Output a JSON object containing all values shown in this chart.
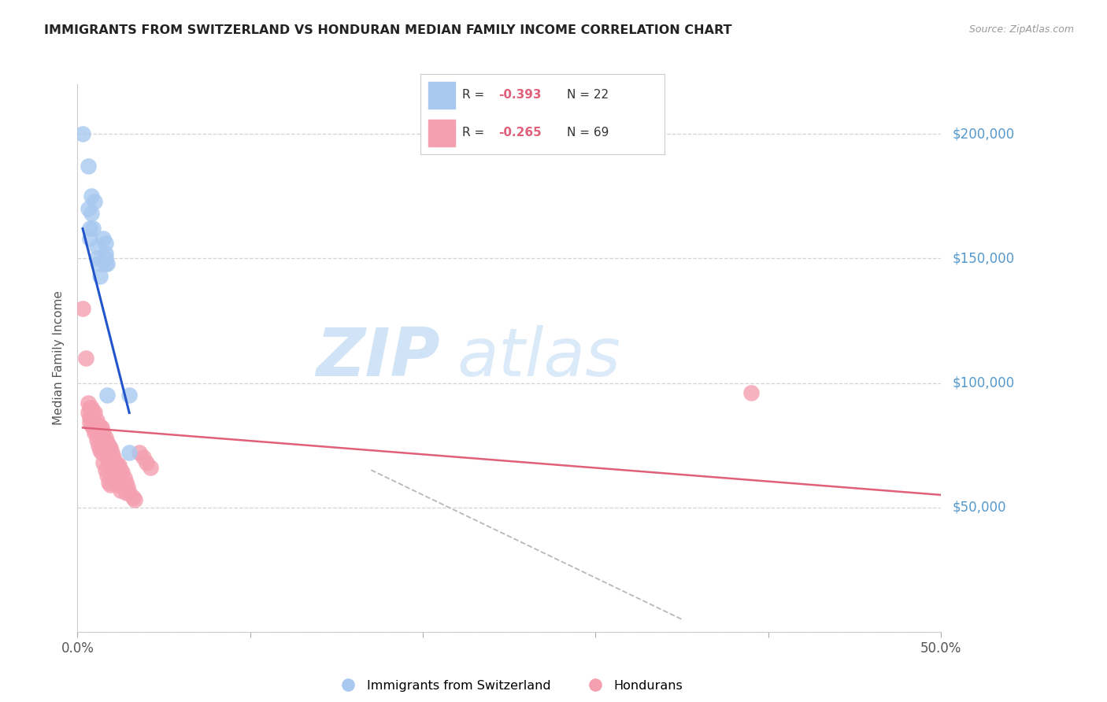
{
  "title": "IMMIGRANTS FROM SWITZERLAND VS HONDURAN MEDIAN FAMILY INCOME CORRELATION CHART",
  "source": "Source: ZipAtlas.com",
  "ylabel": "Median Family Income",
  "legend_label1": "Immigrants from Switzerland",
  "legend_label2": "Hondurans",
  "yticks": [
    0,
    50000,
    100000,
    150000,
    200000
  ],
  "ytick_labels": [
    "",
    "$50,000",
    "$100,000",
    "$150,000",
    "$200,000"
  ],
  "xticks": [
    0.0,
    0.1,
    0.2,
    0.3,
    0.4,
    0.5
  ],
  "xtick_labels": [
    "0.0%",
    "",
    "",
    "",
    "",
    "50.0%"
  ],
  "xlim": [
    0.0,
    0.5
  ],
  "ylim": [
    0,
    220000
  ],
  "background_color": "#ffffff",
  "grid_color": "#d0d0d0",
  "blue_color": "#a8c8f0",
  "pink_color": "#f4a0b0",
  "blue_line_color": "#2255cc",
  "pink_line_color": "#e0607a",
  "dashed_line_color": "#b8b8b8",
  "right_tick_color": "#5599cc",
  "title_color": "#222222",
  "blue_scatter": [
    [
      0.003,
      200000
    ],
    [
      0.006,
      187000
    ],
    [
      0.006,
      170000
    ],
    [
      0.007,
      162000
    ],
    [
      0.007,
      158000
    ],
    [
      0.008,
      175000
    ],
    [
      0.008,
      168000
    ],
    [
      0.009,
      162000
    ],
    [
      0.01,
      173000
    ],
    [
      0.011,
      155000
    ],
    [
      0.011,
      150000
    ],
    [
      0.012,
      148000
    ],
    [
      0.013,
      143000
    ],
    [
      0.015,
      158000
    ],
    [
      0.016,
      156000
    ],
    [
      0.016,
      152000
    ],
    [
      0.016,
      150000
    ],
    [
      0.016,
      148000
    ],
    [
      0.017,
      148000
    ],
    [
      0.017,
      95000
    ],
    [
      0.03,
      95000
    ],
    [
      0.03,
      72000
    ]
  ],
  "pink_scatter": [
    [
      0.003,
      130000
    ],
    [
      0.005,
      110000
    ],
    [
      0.006,
      92000
    ],
    [
      0.006,
      88000
    ],
    [
      0.007,
      90000
    ],
    [
      0.007,
      86000
    ],
    [
      0.007,
      84000
    ],
    [
      0.008,
      90000
    ],
    [
      0.008,
      86000
    ],
    [
      0.008,
      83000
    ],
    [
      0.009,
      88000
    ],
    [
      0.009,
      85000
    ],
    [
      0.009,
      82000
    ],
    [
      0.01,
      88000
    ],
    [
      0.01,
      84000
    ],
    [
      0.01,
      80000
    ],
    [
      0.011,
      85000
    ],
    [
      0.011,
      80000
    ],
    [
      0.011,
      77000
    ],
    [
      0.012,
      83000
    ],
    [
      0.012,
      79000
    ],
    [
      0.012,
      75000
    ],
    [
      0.013,
      82000
    ],
    [
      0.013,
      78000
    ],
    [
      0.013,
      73000
    ],
    [
      0.014,
      82000
    ],
    [
      0.014,
      77000
    ],
    [
      0.014,
      72000
    ],
    [
      0.015,
      80000
    ],
    [
      0.015,
      75000
    ],
    [
      0.015,
      68000
    ],
    [
      0.016,
      78000
    ],
    [
      0.016,
      73000
    ],
    [
      0.016,
      65000
    ],
    [
      0.017,
      76000
    ],
    [
      0.017,
      70000
    ],
    [
      0.017,
      63000
    ],
    [
      0.018,
      75000
    ],
    [
      0.018,
      68000
    ],
    [
      0.018,
      60000
    ],
    [
      0.019,
      74000
    ],
    [
      0.019,
      67000
    ],
    [
      0.019,
      59000
    ],
    [
      0.02,
      72000
    ],
    [
      0.02,
      65000
    ],
    [
      0.021,
      70000
    ],
    [
      0.021,
      63000
    ],
    [
      0.022,
      68000
    ],
    [
      0.022,
      61000
    ],
    [
      0.023,
      67000
    ],
    [
      0.023,
      59000
    ],
    [
      0.024,
      67000
    ],
    [
      0.024,
      60000
    ],
    [
      0.025,
      65000
    ],
    [
      0.025,
      57000
    ],
    [
      0.026,
      64000
    ],
    [
      0.027,
      62000
    ],
    [
      0.028,
      60000
    ],
    [
      0.028,
      56000
    ],
    [
      0.029,
      58000
    ],
    [
      0.03,
      56000
    ],
    [
      0.032,
      54000
    ],
    [
      0.033,
      53000
    ],
    [
      0.036,
      72000
    ],
    [
      0.038,
      70000
    ],
    [
      0.04,
      68000
    ],
    [
      0.042,
      66000
    ],
    [
      0.39,
      96000
    ]
  ],
  "blue_trendline_x": [
    0.003,
    0.03
  ],
  "blue_trendline_y": [
    162000,
    88000
  ],
  "pink_trendline_x": [
    0.003,
    0.5
  ],
  "pink_trendline_y": [
    82000,
    55000
  ],
  "dashed_trendline_x": [
    0.17,
    0.35
  ],
  "dashed_trendline_y": [
    65000,
    5000
  ],
  "watermark_line1": "ZIP",
  "watermark_line2": "atlas"
}
